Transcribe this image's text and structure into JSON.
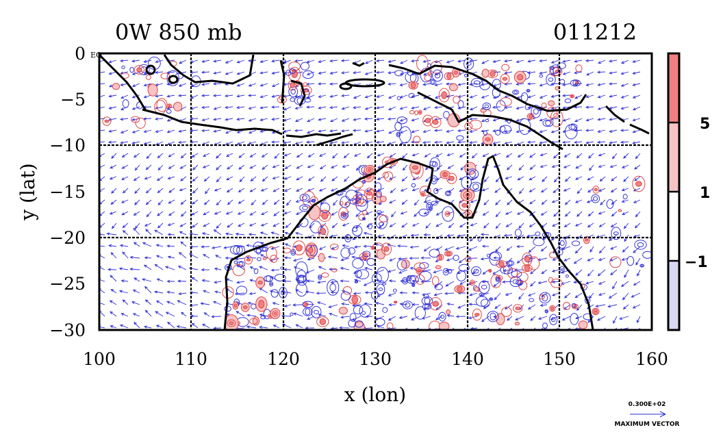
{
  "header": {
    "title_left": "0W 850 mb",
    "title_right": "011212"
  },
  "axes": {
    "xlabel": "x (lon)",
    "ylabel": "y (lat)",
    "x_ticks": [
      "100",
      "110",
      "120",
      "130",
      "140",
      "150",
      "160"
    ],
    "y_ticks": [
      "0",
      "−5",
      "−10",
      "−15",
      "−20",
      "−25",
      "−30"
    ],
    "eq_label": "EQ"
  },
  "colorbar": {
    "labels": [
      "5",
      "1",
      "−1"
    ],
    "colors": [
      "#f08080",
      "#f6c4c4",
      "#ffffff",
      "#d8daf4"
    ]
  },
  "vector_key": {
    "value": "0.300E+02",
    "label": "MAXIMUM VECTOR"
  },
  "chart_data": {
    "type": "map",
    "region": {
      "lon": [
        100,
        160
      ],
      "lat": [
        -30,
        0
      ]
    },
    "gridlines": true,
    "field": "OW",
    "level_mb": 850,
    "date": "011212",
    "contour_levels": [
      -1,
      1,
      5
    ],
    "colors": {
      "positive": "#e04545",
      "negative": "#3535d8",
      "vectors": "#2a2ad8",
      "coast": "#000000"
    }
  }
}
